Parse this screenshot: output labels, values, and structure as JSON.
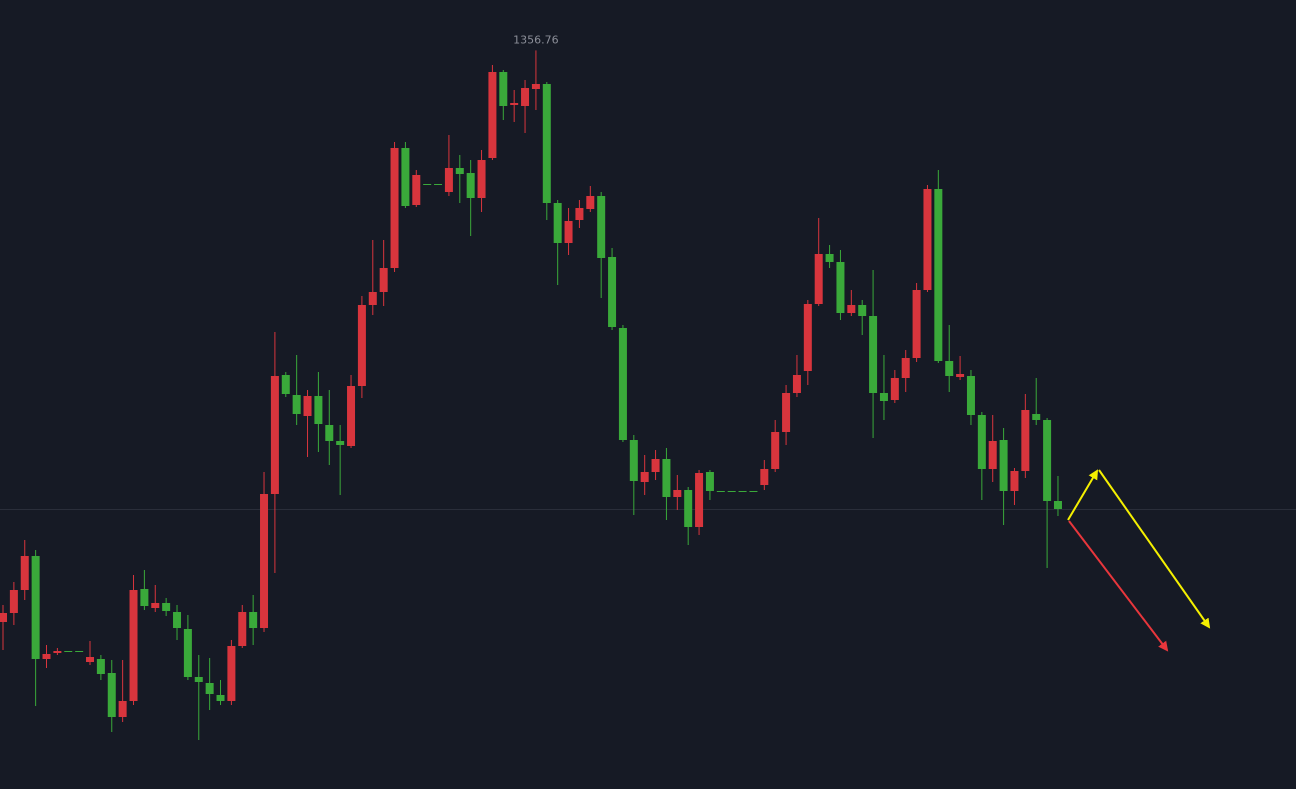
{
  "chart_data": {
    "type": "candlestick",
    "annotation": "1356.76",
    "up_color": "#d8353d",
    "down_color": "#3aa93a",
    "ylim": [
      1282.9,
      1361.8
    ],
    "open": [
      1299.6,
      1300.5,
      1302.8,
      1306.2,
      1295.9,
      1296.5,
      1296.7,
      1296.7,
      1295.6,
      1295.9,
      1294.5,
      1290.1,
      1291.7,
      1302.9,
      1301.0,
      1301.5,
      1300.6,
      1298.9,
      1294.1,
      1293.5,
      1292.3,
      1291.7,
      1297.2,
      1300.6,
      1299.0,
      1312.4,
      1324.3,
      1322.3,
      1320.2,
      1322.2,
      1319.3,
      1317.7,
      1317.2,
      1323.2,
      1331.3,
      1332.6,
      1335.0,
      1347.0,
      1341.3,
      1343.4,
      1343.4,
      1342.6,
      1345.0,
      1344.5,
      1342.0,
      1346.0,
      1354.6,
      1351.3,
      1351.2,
      1352.9,
      1353.4,
      1341.5,
      1337.5,
      1339.8,
      1340.9,
      1342.2,
      1336.1,
      1329.0,
      1317.8,
      1313.6,
      1314.6,
      1315.9,
      1312.1,
      1312.8,
      1309.1,
      1314.6,
      1312.7,
      1312.7,
      1312.7,
      1312.7,
      1313.3,
      1314.9,
      1318.6,
      1322.5,
      1324.7,
      1331.4,
      1336.4,
      1335.6,
      1330.5,
      1331.3,
      1330.2,
      1322.5,
      1321.8,
      1324.0,
      1326.0,
      1332.8,
      1342.9,
      1325.7,
      1324.1,
      1324.2,
      1320.3,
      1314.9,
      1317.8,
      1312.7,
      1314.7,
      1320.4,
      1319.8,
      1311.7
    ],
    "high": [
      1301.3,
      1303.6,
      1307.8,
      1306.8,
      1297.3,
      1297.0,
      1296.7,
      1296.7,
      1297.7,
      1296.3,
      1295.8,
      1295.8,
      1304.3,
      1304.8,
      1303.3,
      1302.0,
      1301.3,
      1300.3,
      1296.3,
      1296.0,
      1293.8,
      1297.8,
      1301.3,
      1302.3,
      1314.6,
      1328.6,
      1324.6,
      1326.3,
      1322.8,
      1324.6,
      1322.8,
      1319.3,
      1324.3,
      1332.2,
      1337.8,
      1337.8,
      1347.6,
      1347.6,
      1344.8,
      1343.4,
      1343.4,
      1348.3,
      1346.3,
      1345.8,
      1346.8,
      1355.3,
      1354.8,
      1352.8,
      1353.8,
      1356.76,
      1353.6,
      1341.8,
      1341.0,
      1341.8,
      1343.2,
      1342.6,
      1337.0,
      1329.3,
      1318.3,
      1316.3,
      1316.8,
      1317.0,
      1314.3,
      1313.1,
      1314.8,
      1314.8,
      1312.7,
      1312.7,
      1312.7,
      1312.7,
      1315.8,
      1319.8,
      1323.3,
      1326.3,
      1331.8,
      1340.0,
      1337.3,
      1336.8,
      1332.8,
      1331.8,
      1334.8,
      1326.3,
      1324.8,
      1326.8,
      1333.5,
      1343.3,
      1344.8,
      1329.3,
      1326.2,
      1324.8,
      1320.6,
      1320.3,
      1319.0,
      1315.0,
      1322.4,
      1324.0,
      1320.0,
      1314.2
    ],
    "low": [
      1296.8,
      1299.3,
      1301.8,
      1291.2,
      1295.0,
      1296.3,
      1296.7,
      1296.7,
      1295.3,
      1293.8,
      1288.6,
      1289.6,
      1291.3,
      1300.8,
      1300.6,
      1300.2,
      1297.8,
      1293.8,
      1287.8,
      1290.8,
      1291.3,
      1291.3,
      1297.0,
      1297.3,
      1298.6,
      1304.5,
      1322.1,
      1319.3,
      1316.1,
      1316.6,
      1315.3,
      1312.3,
      1317.0,
      1322.0,
      1330.3,
      1331.2,
      1334.6,
      1341.0,
      1341.1,
      1343.4,
      1343.4,
      1342.2,
      1341.5,
      1338.2,
      1340.6,
      1345.8,
      1349.8,
      1349.6,
      1348.5,
      1350.8,
      1339.8,
      1333.3,
      1336.3,
      1339.0,
      1340.6,
      1332.0,
      1328.8,
      1317.6,
      1310.3,
      1312.3,
      1313.8,
      1309.8,
      1310.8,
      1307.3,
      1308.3,
      1311.8,
      1312.7,
      1312.7,
      1312.7,
      1312.7,
      1312.8,
      1314.6,
      1317.3,
      1322.1,
      1323.3,
      1331.2,
      1335.0,
      1329.8,
      1330.2,
      1328.3,
      1318.0,
      1319.8,
      1321.5,
      1322.6,
      1325.6,
      1332.6,
      1325.5,
      1322.6,
      1323.8,
      1319.3,
      1311.8,
      1313.6,
      1309.3,
      1311.3,
      1314.0,
      1319.3,
      1305.0,
      1310.2
    ],
    "close": [
      1300.5,
      1302.8,
      1306.2,
      1295.9,
      1296.4,
      1296.7,
      1296.7,
      1296.7,
      1296.1,
      1294.4,
      1290.1,
      1291.7,
      1302.8,
      1301.2,
      1301.5,
      1300.7,
      1299.0,
      1294.1,
      1293.6,
      1292.4,
      1291.7,
      1297.2,
      1300.6,
      1299.0,
      1312.4,
      1324.2,
      1322.4,
      1320.4,
      1322.2,
      1319.4,
      1317.7,
      1317.3,
      1323.2,
      1331.3,
      1332.6,
      1335.0,
      1347.0,
      1341.2,
      1344.3,
      1343.4,
      1343.4,
      1345.0,
      1344.4,
      1342.0,
      1345.8,
      1354.6,
      1351.2,
      1351.5,
      1353.0,
      1353.4,
      1341.5,
      1337.5,
      1339.7,
      1341.0,
      1342.2,
      1336.0,
      1329.1,
      1317.8,
      1313.7,
      1314.6,
      1315.9,
      1312.1,
      1312.8,
      1309.1,
      1314.5,
      1312.7,
      1312.7,
      1312.7,
      1312.7,
      1312.7,
      1314.9,
      1318.6,
      1322.5,
      1324.3,
      1331.4,
      1336.4,
      1335.6,
      1330.5,
      1331.3,
      1330.2,
      1322.5,
      1321.7,
      1324.0,
      1326.0,
      1332.8,
      1342.9,
      1325.7,
      1324.2,
      1324.4,
      1320.3,
      1314.9,
      1317.7,
      1312.7,
      1314.7,
      1320.8,
      1319.8,
      1311.7,
      1310.9
    ]
  }
}
